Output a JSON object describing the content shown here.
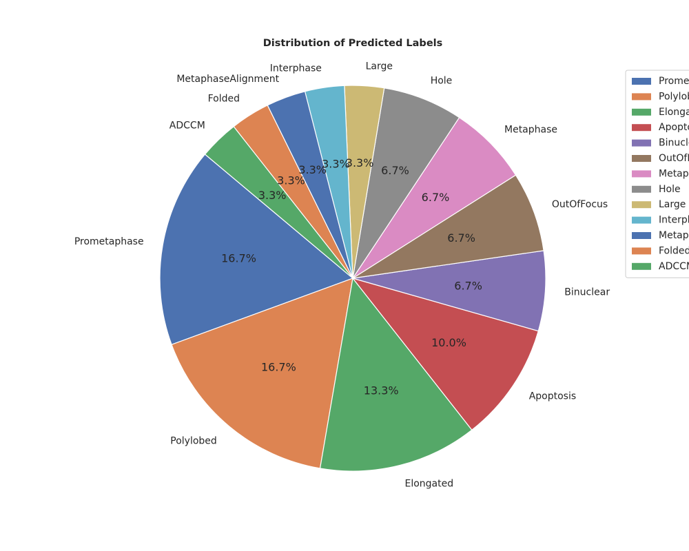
{
  "chart_data": {
    "type": "pie",
    "title": "Distribution of Predicted Labels",
    "categories": [
      "Prometaphase",
      "Polylobed",
      "Elongated",
      "Apoptosis",
      "Binuclear",
      "OutOfFocus",
      "Metaphase",
      "Hole",
      "Large",
      "Interphase",
      "MetaphaseAlignment",
      "Folded",
      "ADCCM"
    ],
    "values": [
      16.7,
      16.7,
      13.3,
      10.0,
      6.7,
      6.7,
      6.7,
      6.7,
      3.3,
      3.3,
      3.3,
      3.3,
      3.3
    ],
    "percent_labels": [
      "16.7%",
      "16.7%",
      "13.3%",
      "10.0%",
      "6.7%",
      "6.7%",
      "6.7%",
      "6.7%",
      "3.3%",
      "3.3%",
      "3.3%",
      "3.3%",
      "3.3%"
    ],
    "colors": [
      "#4c72b0",
      "#dd8452",
      "#55a868",
      "#c44e52",
      "#8172b3",
      "#937860",
      "#da8bc3",
      "#8c8c8c",
      "#ccb974",
      "#64b5cd",
      "#4c72b0",
      "#dd8452",
      "#55a868"
    ],
    "legend_labels": [
      "Prometaphase",
      "Polylobed",
      "Elongated",
      "Apoptosis",
      "Binuclear",
      "OutOfFocus",
      "Metaphase",
      "Hole",
      "Large",
      "Interphase",
      "MetaphaseAlignment",
      "Folded",
      "ADCCM"
    ],
    "legend_position": "right (clipped at page edge)",
    "start_angle_deg": 140,
    "direction": "counterclockwise"
  }
}
